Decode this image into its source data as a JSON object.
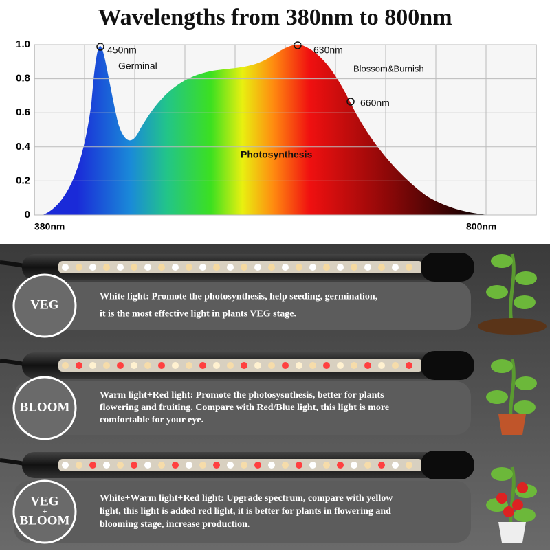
{
  "title": "Wavelengths from 380nm to 800nm",
  "spectrum": {
    "yticks": [
      0,
      0.2,
      0.4,
      0.6,
      0.8,
      {
        "value": 1,
        "label": "1.0"
      }
    ],
    "x_start": "380nm",
    "x_end": "800nm",
    "peak_blue": "450nm",
    "germinal": "Germinal",
    "peak_red": "630nm",
    "blossom": "Blossom&Burnish",
    "far_red": "660nm",
    "photosynthesis": "Photosynthesis"
  },
  "modes": [
    {
      "name_lines": [
        "VEG"
      ],
      "lines": [
        "White light: Promote the photosynthesis, help seeding, germination,",
        "it is the most effective light in plants VEG stage."
      ]
    },
    {
      "name_lines": [
        "BLOOM"
      ],
      "lines": [
        "Warm light+Red light: Promote the photosysnthesis, better for plants",
        "flowering and fruiting. Compare with Red/Blue light, this light is more",
        "comfortable for your eye."
      ]
    },
    {
      "name_lines": [
        "VEG",
        "+",
        "BLOOM"
      ],
      "lines": [
        "White+Warm light+Red light: Upgrade spectrum, compare with yellow",
        "light, this light is added red light, it is better for plants in flowering and",
        "blooming stage, increase production."
      ]
    }
  ]
}
